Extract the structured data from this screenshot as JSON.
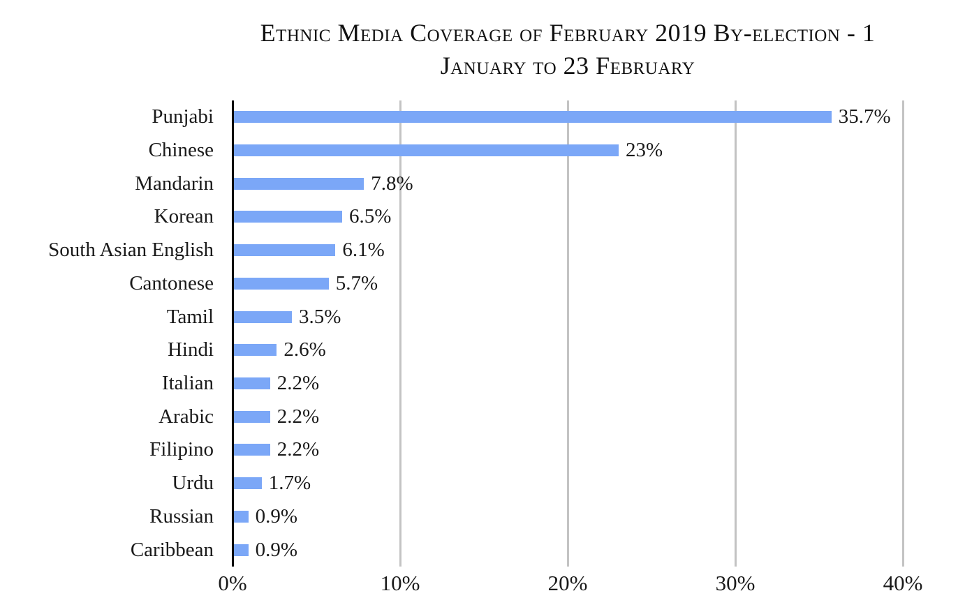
{
  "title": {
    "line1": "Ethnic Media Coverage of February 2019 By-election - 1",
    "line2": "January to 23 February"
  },
  "chart_data": {
    "type": "bar",
    "orientation": "horizontal",
    "title": "Ethnic Media Coverage of February 2019 By-election - 1 January to 23 February",
    "categories": [
      "Punjabi",
      "Chinese",
      "Mandarin",
      "Korean",
      "South Asian English",
      "Cantonese",
      "Tamil",
      "Hindi",
      "Italian",
      "Arabic",
      "Filipino",
      "Urdu",
      "Russian",
      "Caribbean"
    ],
    "values": [
      35.7,
      23,
      7.8,
      6.5,
      6.1,
      5.7,
      3.5,
      2.6,
      2.2,
      2.2,
      2.2,
      1.7,
      0.9,
      0.9
    ],
    "value_labels": [
      "35.7%",
      "23%",
      "7.8%",
      "6.5%",
      "6.1%",
      "5.7%",
      "3.5%",
      "2.6%",
      "2.2%",
      "2.2%",
      "2.2%",
      "1.7%",
      "0.9%",
      "0.9%"
    ],
    "xlabel": "",
    "ylabel": "",
    "xlim": [
      0,
      40
    ],
    "x_ticks": [
      "0%",
      "10%",
      "20%",
      "30%",
      "40%"
    ],
    "x_tick_values": [
      0,
      10,
      20,
      30,
      40
    ],
    "grid": true,
    "legend": false,
    "colors": {
      "bar": "#7BA7F7",
      "gridline": "#c3c3c3",
      "axis": "#000000",
      "text": "#1a1a1a"
    }
  }
}
